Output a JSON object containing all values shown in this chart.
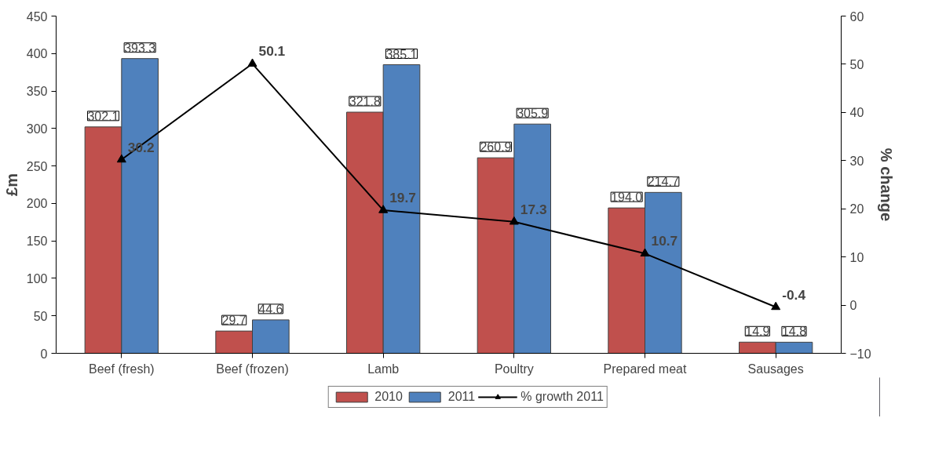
{
  "chart_data": {
    "type": "bar",
    "ylabel": "£m",
    "y2label": "% change",
    "categories": [
      "Beef (fresh)",
      "Beef (frozen)",
      "Lamb",
      "Poultry",
      "Prepared meat",
      "Sausages"
    ],
    "series": [
      {
        "name": "2010",
        "color": "#c0504d",
        "values": [
          302.1,
          29.7,
          321.8,
          260.9,
          194.0,
          14.9
        ],
        "value_labels": [
          "302.1",
          "29.7",
          "321.8",
          "260.9",
          "194.0",
          "14.9"
        ]
      },
      {
        "name": "2011",
        "color": "#4f81bd",
        "values": [
          393.3,
          44.6,
          385.1,
          305.9,
          214.7,
          14.8
        ],
        "value_labels": [
          "393.3",
          "44.6",
          "385.1",
          "305.9",
          "214.7",
          "14.8"
        ]
      },
      {
        "name": "% growth 2011",
        "type": "line",
        "axis": "y2",
        "color": "#000000",
        "marker": "triangle",
        "values": [
          30.2,
          50.1,
          19.7,
          17.3,
          10.7,
          -0.4
        ],
        "value_labels": [
          "30.2",
          "50.1",
          "19.7",
          "17.3",
          "10.7",
          "-0.4"
        ]
      }
    ],
    "ylim": [
      0,
      450
    ],
    "yticks": [
      0,
      50,
      100,
      150,
      200,
      250,
      300,
      350,
      400,
      450
    ],
    "y2lim": [
      -10,
      60
    ],
    "y2ticks": [
      -10,
      0,
      10,
      20,
      30,
      40,
      50,
      60
    ],
    "grid": false,
    "legend": "bottom"
  }
}
